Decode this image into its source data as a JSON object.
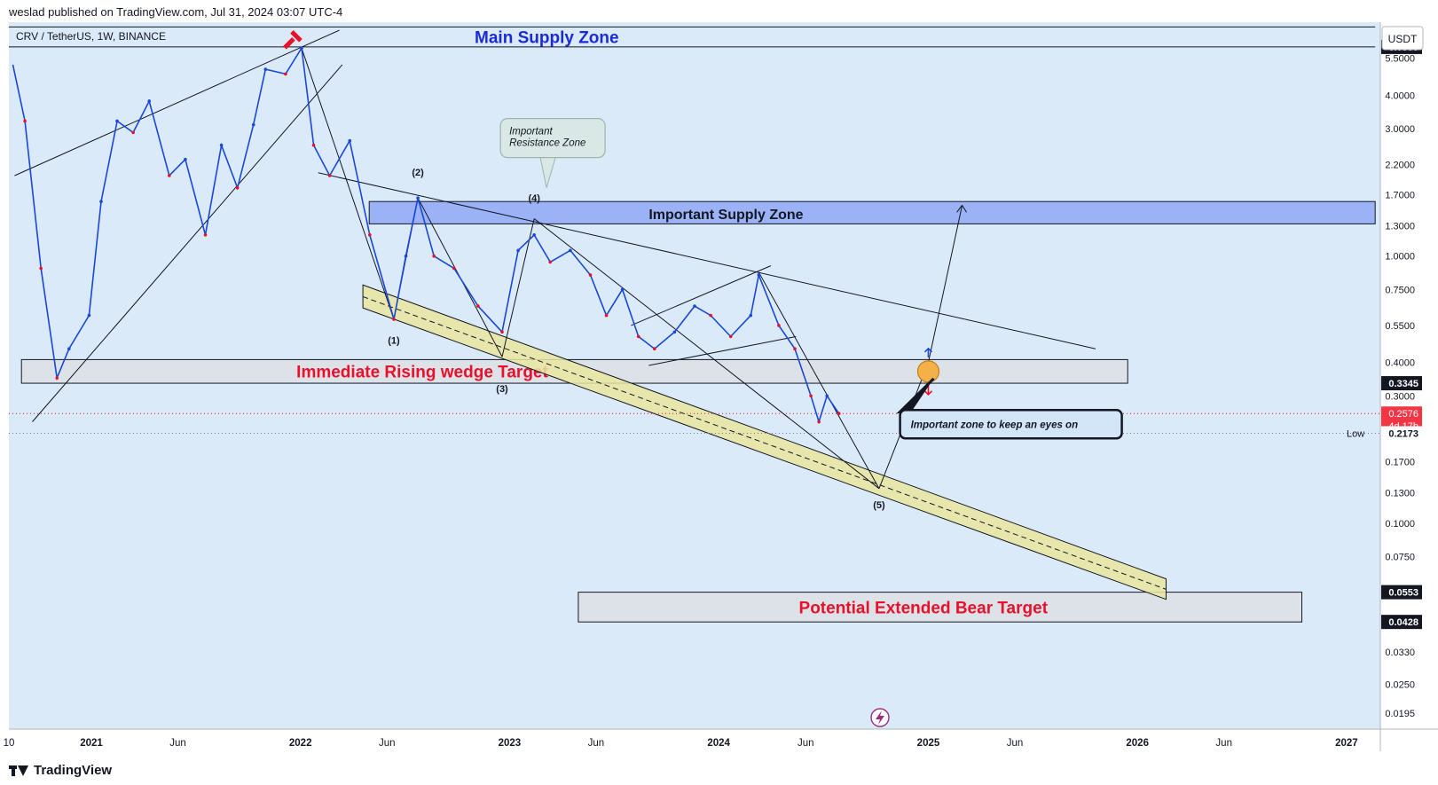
{
  "header": {
    "publisher": "weslad published on TradingView.com, Jul 31, 2024 03:07 UTC-4"
  },
  "footer": {
    "brand": "TradingView"
  },
  "chart_data": {
    "type": "line",
    "title": "CRV / TetherUS, 1W, BINANCE",
    "currency": "USDT",
    "y_scale": "log",
    "ylim": [
      0.017,
      7.5
    ],
    "xlim": [
      "2020-08-10",
      "2027-03-01"
    ],
    "x_ticks": [
      {
        "label": "10",
        "date": "2020-08-10"
      },
      {
        "label": "2021",
        "date": "2021-01-01"
      },
      {
        "label": "Jun",
        "date": "2021-06-01"
      },
      {
        "label": "2022",
        "date": "2022-01-01"
      },
      {
        "label": "Jun",
        "date": "2022-06-01"
      },
      {
        "label": "2023",
        "date": "2023-01-01"
      },
      {
        "label": "Jun",
        "date": "2023-06-01"
      },
      {
        "label": "2024",
        "date": "2024-01-01"
      },
      {
        "label": "Jun",
        "date": "2024-06-01"
      },
      {
        "label": "2025",
        "date": "2025-01-01"
      },
      {
        "label": "Jun",
        "date": "2025-06-01"
      },
      {
        "label": "2026",
        "date": "2026-01-01"
      },
      {
        "label": "Jun",
        "date": "2026-06-01"
      },
      {
        "label": "2027",
        "date": "2027-01-01"
      }
    ],
    "y_ticks": [
      {
        "label": "5.5000",
        "value": 5.5
      },
      {
        "label": "4.0000",
        "value": 4.0
      },
      {
        "label": "3.0000",
        "value": 3.0
      },
      {
        "label": "2.2000",
        "value": 2.2
      },
      {
        "label": "1.7000",
        "value": 1.7
      },
      {
        "label": "1.3000",
        "value": 1.3
      },
      {
        "label": "1.0000",
        "value": 1.0
      },
      {
        "label": "0.7500",
        "value": 0.75
      },
      {
        "label": "0.5500",
        "value": 0.55
      },
      {
        "label": "0.4000",
        "value": 0.4
      },
      {
        "label": "0.3000",
        "value": 0.3
      },
      {
        "label": "0.1700",
        "value": 0.17
      },
      {
        "label": "0.1300",
        "value": 0.13
      },
      {
        "label": "0.1000",
        "value": 0.1
      },
      {
        "label": "0.0750",
        "value": 0.075
      },
      {
        "label": "0.0330",
        "value": 0.033
      },
      {
        "label": "0.0250",
        "value": 0.025
      },
      {
        "label": "0.0195",
        "value": 0.0195
      }
    ],
    "price_labels": [
      {
        "label": "6.0585",
        "value": 6.0585,
        "style": "dark"
      },
      {
        "label": "0.3345",
        "value": 0.3345,
        "style": "dark"
      },
      {
        "label": "0.2576",
        "sub": "4d 17h",
        "value": 0.2576,
        "style": "red"
      },
      {
        "label": "0.2173",
        "prefix": "Low",
        "value": 0.2173,
        "style": "plain"
      },
      {
        "label": "0.0553",
        "value": 0.0553,
        "style": "dark"
      },
      {
        "label": "0.0428",
        "value": 0.0428,
        "style": "dark"
      }
    ],
    "path": [
      [
        "2020-08-17",
        5.2
      ],
      [
        "2020-09-07",
        3.2
      ],
      [
        "2020-10-05",
        0.9
      ],
      [
        "2020-11-02",
        0.35
      ],
      [
        "2020-11-23",
        0.45
      ],
      [
        "2020-12-28",
        0.6
      ],
      [
        "2021-01-18",
        1.6
      ],
      [
        "2021-02-15",
        3.2
      ],
      [
        "2021-03-15",
        2.9
      ],
      [
        "2021-04-12",
        3.8
      ],
      [
        "2021-05-17",
        2.0
      ],
      [
        "2021-06-14",
        2.3
      ],
      [
        "2021-07-19",
        1.2
      ],
      [
        "2021-08-16",
        2.6
      ],
      [
        "2021-09-13",
        1.8
      ],
      [
        "2021-10-11",
        3.1
      ],
      [
        "2021-11-01",
        5.0
      ],
      [
        "2021-12-06",
        4.8
      ],
      [
        "2022-01-03",
        6.0
      ],
      [
        "2022-01-24",
        2.6
      ],
      [
        "2022-02-21",
        2.0
      ],
      [
        "2022-03-28",
        2.7
      ],
      [
        "2022-05-02",
        1.2
      ],
      [
        "2022-06-13",
        0.58
      ],
      [
        "2022-07-04",
        1.0
      ],
      [
        "2022-07-25",
        1.65
      ],
      [
        "2022-08-22",
        1.0
      ],
      [
        "2022-09-26",
        0.9
      ],
      [
        "2022-11-07",
        0.65
      ],
      [
        "2022-12-19",
        0.52
      ],
      [
        "2023-01-16",
        1.05
      ],
      [
        "2023-02-13",
        1.2
      ],
      [
        "2023-03-13",
        0.95
      ],
      [
        "2023-04-17",
        1.05
      ],
      [
        "2023-05-22",
        0.85
      ],
      [
        "2023-06-19",
        0.6
      ],
      [
        "2023-07-17",
        0.75
      ],
      [
        "2023-08-14",
        0.5
      ],
      [
        "2023-09-11",
        0.45
      ],
      [
        "2023-10-16",
        0.52
      ],
      [
        "2023-11-20",
        0.65
      ],
      [
        "2023-12-18",
        0.6
      ],
      [
        "2024-01-22",
        0.5
      ],
      [
        "2024-02-26",
        0.6
      ],
      [
        "2024-03-11",
        0.85
      ],
      [
        "2024-04-15",
        0.55
      ],
      [
        "2024-05-13",
        0.45
      ],
      [
        "2024-06-10",
        0.3
      ],
      [
        "2024-06-24",
        0.24
      ],
      [
        "2024-07-08",
        0.3
      ],
      [
        "2024-07-29",
        0.2576
      ]
    ],
    "zones": [
      {
        "name": "Main Supply Zone",
        "from": "2020-08-10",
        "to": "2027-02-20",
        "top": 7.2,
        "bottom": 6.0585,
        "fill": "none",
        "text_color": "#1a2bd6",
        "label_date": "2022-11-01"
      },
      {
        "name": "Important Supply Zone",
        "from": "2022-05-01",
        "to": "2027-02-20",
        "top": 1.6,
        "bottom": 1.32,
        "fill": "#8fa8f7",
        "text_color": "#131722",
        "label_date": "2023-09-01"
      },
      {
        "name": "Immediate Rising wedge Target",
        "from": "2020-09-01",
        "to": "2025-12-15",
        "top": 0.41,
        "bottom": 0.3345,
        "fill": "#dde1e6",
        "text_color": "#e8102a",
        "label_date": "2021-12-25"
      },
      {
        "name": "Potential Extended Bear Target",
        "from": "2023-05-01",
        "to": "2026-10-15",
        "top": 0.0553,
        "bottom": 0.0428,
        "fill": "#dde1e6",
        "text_color": "#e8102a",
        "label_date": "2024-05-20"
      }
    ],
    "wave_labels": [
      {
        "label": "(1)",
        "date": "2022-06-13",
        "value": 0.47
      },
      {
        "label": "(2)",
        "date": "2022-07-25",
        "value": 2.0
      },
      {
        "label": "(3)",
        "date": "2022-12-19",
        "value": 0.31
      },
      {
        "label": "(4)",
        "date": "2023-02-13",
        "value": 1.6
      },
      {
        "label": "(5)",
        "date": "2024-10-07",
        "value": 0.114
      }
    ],
    "annotations": [
      {
        "text": [
          "Important",
          "Resistance Zone"
        ],
        "date": "2023-01-16",
        "value": 2.6
      },
      {
        "text": [
          "Important zone to keep an eyes on"
        ],
        "date": "2025-04-01",
        "value": 0.235
      }
    ]
  }
}
